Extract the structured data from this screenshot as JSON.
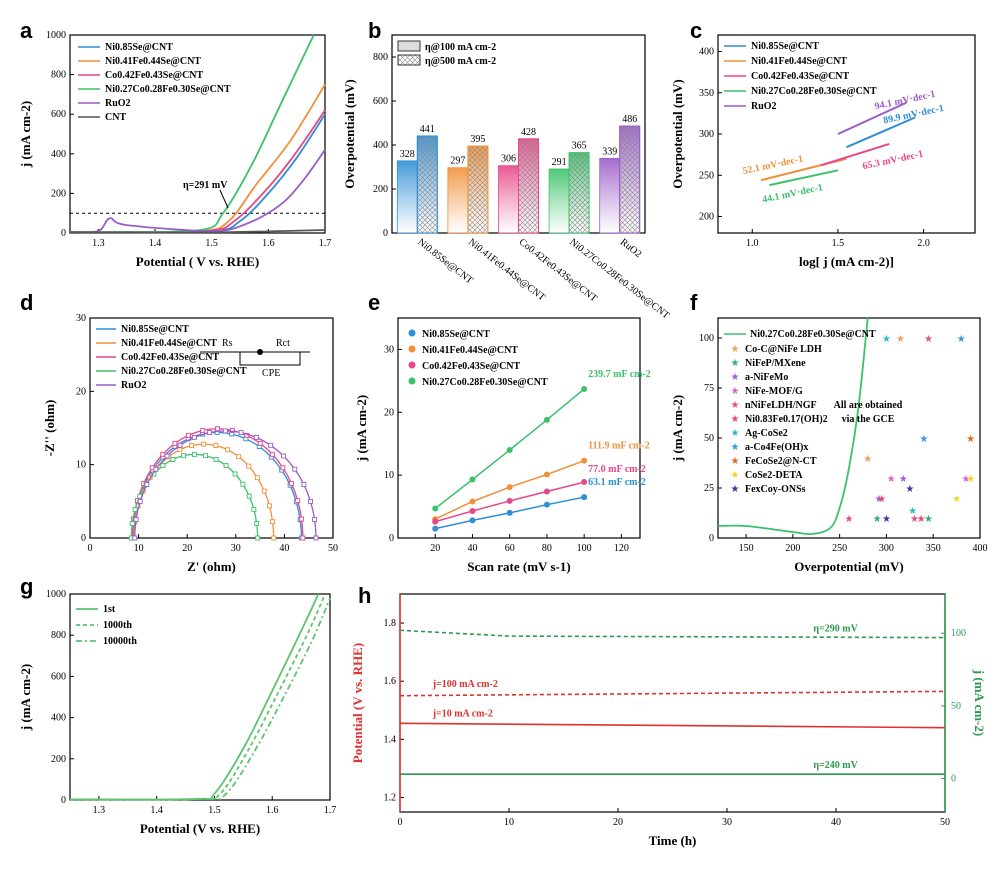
{
  "colors": {
    "blue": "#2e8ed6",
    "orange": "#f0913a",
    "pink": "#e8468a",
    "green": "#3cc26a",
    "purple": "#9a5cc8",
    "gray": "#555555",
    "red": "#e03030",
    "dgreen": "#2a9a4a"
  },
  "chart_data": [
    {
      "panel": "a",
      "type": "line",
      "xlabel": "Potential ( V vs. RHE)",
      "ylabel": "j (mA cm-2)",
      "xlim": [
        1.25,
        1.7
      ],
      "ylim": [
        0,
        1000
      ],
      "xticks": [
        "1.3",
        "1.4",
        "1.5",
        "1.6",
        "1.7"
      ],
      "yticks": [
        "0",
        "200",
        "400",
        "600",
        "800",
        "1000"
      ],
      "legend": [
        "Ni0.85Se@CNT",
        "Ni0.41Fe0.44Se@CNT",
        "Co0.42Fe0.43Se@CNT",
        "Ni0.27Co0.28Fe0.30Se@CNT",
        "RuO2",
        "CNT"
      ],
      "annotation": "η=291 mV",
      "dashed_y": 100,
      "series": [
        {
          "name": "Ni0.85Se@CNT",
          "color": "blue",
          "x": [
            1.25,
            1.3,
            1.5,
            1.55,
            1.6,
            1.65,
            1.7
          ],
          "y": [
            5,
            5,
            10,
            60,
            200,
            380,
            600
          ]
        },
        {
          "name": "Ni0.41Fe0.44Se@CNT",
          "color": "orange",
          "x": [
            1.25,
            1.3,
            1.48,
            1.53,
            1.58,
            1.64,
            1.7
          ],
          "y": [
            5,
            5,
            10,
            60,
            250,
            470,
            750
          ]
        },
        {
          "name": "Co0.42Fe0.43Se@CNT",
          "color": "pink",
          "x": [
            1.25,
            1.3,
            1.49,
            1.54,
            1.6,
            1.65,
            1.7
          ],
          "y": [
            5,
            5,
            10,
            60,
            230,
            410,
            620
          ]
        },
        {
          "name": "Ni0.27Co0.28Fe0.30Se@CNT",
          "color": "green",
          "x": [
            1.25,
            1.3,
            1.48,
            1.52,
            1.57,
            1.62,
            1.68
          ],
          "y": [
            5,
            5,
            15,
            100,
            340,
            640,
            1000
          ]
        },
        {
          "name": "RuO2",
          "color": "purple",
          "x": [
            1.25,
            1.3,
            1.32,
            1.35,
            1.5,
            1.56,
            1.62,
            1.66,
            1.7
          ],
          "y": [
            5,
            10,
            75,
            40,
            10,
            45,
            140,
            260,
            420
          ]
        },
        {
          "name": "CNT",
          "color": "gray",
          "x": [
            1.25,
            1.5,
            1.7
          ],
          "y": [
            3,
            3,
            15
          ]
        }
      ]
    },
    {
      "panel": "b",
      "type": "bar",
      "ylabel": "Overpotential (mV)",
      "ylim": [
        0,
        900
      ],
      "yticks": [
        "0",
        "200",
        "400",
        "600",
        "800"
      ],
      "legend": [
        "η@100 mA cm-2",
        "η@500 mA cm-2"
      ],
      "categories": [
        "Ni0.85Se@CNT",
        "Ni0.41Fe0.44Se@CNT",
        "Co0.42Fe0.43Se@CNT",
        "Ni0.27Co0.28Fe0.30Se@CNT",
        "RuO2"
      ],
      "colors": [
        "blue",
        "orange",
        "pink",
        "green",
        "purple"
      ],
      "series": [
        {
          "name": "η@100 mA cm-2",
          "values": [
            328,
            297,
            306,
            291,
            339
          ]
        },
        {
          "name": "η@500 mA cm-2",
          "values": [
            441,
            395,
            428,
            365,
            486
          ]
        }
      ]
    },
    {
      "panel": "c",
      "type": "line",
      "xlabel": "log[ j (mA cm-2)]",
      "ylabel": "Overpotential (mV)",
      "xlim": [
        0.8,
        2.3
      ],
      "ylim": [
        180,
        420
      ],
      "xticks": [
        "1.0",
        "1.5",
        "2.0"
      ],
      "yticks": [
        "200",
        "250",
        "300",
        "350",
        "400"
      ],
      "legend": [
        "Ni0.85Se@CNT",
        "Ni0.41Fe0.44Se@CNT",
        "Co0.42Fe0.43Se@CNT",
        "Ni0.27Co0.28Fe0.30Se@CNT",
        "RuO2"
      ],
      "series": [
        {
          "name": "Ni0.85Se@CNT",
          "color": "blue",
          "x": [
            1.55,
            1.95
          ],
          "y": [
            284,
            320
          ],
          "label": "89.9 mV·dec-1"
        },
        {
          "name": "Ni0.41Fe0.44Se@CNT",
          "color": "orange",
          "x": [
            1.05,
            1.55
          ],
          "y": [
            244,
            270
          ],
          "label": "52.1 mV·dec-1"
        },
        {
          "name": "Co0.42Fe0.43Se@CNT",
          "color": "pink",
          "x": [
            1.4,
            1.8
          ],
          "y": [
            262,
            288
          ],
          "label": "65.3 mV·dec-1"
        },
        {
          "name": "Ni0.27Co0.28Fe0.30Se@CNT",
          "color": "green",
          "x": [
            1.1,
            1.5
          ],
          "y": [
            238,
            256
          ],
          "label": "44.1 mV·dec-1"
        },
        {
          "name": "RuO2",
          "color": "purple",
          "x": [
            1.5,
            1.9
          ],
          "y": [
            300,
            338
          ],
          "label": "94.1 mV·dec-1"
        }
      ]
    },
    {
      "panel": "d",
      "type": "scatter",
      "xlabel": "Z' (ohm)",
      "ylabel": "-Z'' (ohm)",
      "xlim": [
        0,
        50
      ],
      "ylim": [
        0,
        30
      ],
      "xticks": [
        "0",
        "10",
        "20",
        "30",
        "40",
        "50"
      ],
      "yticks": [
        "0",
        "10",
        "20",
        "30"
      ],
      "legend": [
        "Ni0.85Se@CNT",
        "Ni0.41Fe0.44Se@CNT",
        "Co0.42Fe0.43Se@CNT",
        "Ni0.27Co0.28Fe0.30Se@CNT",
        "RuO2"
      ],
      "circuit": {
        "r1": "Rs",
        "r2": "Rct",
        "c": "CPE"
      },
      "series": [
        {
          "name": "Ni0.85Se@CNT",
          "color": "blue",
          "start": 8.8,
          "end": 43.5,
          "height": 14.4
        },
        {
          "name": "Ni0.41Fe0.44Se@CNT",
          "color": "orange",
          "start": 9.0,
          "end": 37.8,
          "height": 12.8
        },
        {
          "name": "Co0.42Fe0.43Se@CNT",
          "color": "pink",
          "start": 8.7,
          "end": 43.8,
          "height": 14.9
        },
        {
          "name": "Ni0.27Co0.28Fe0.30Se@CNT",
          "color": "green",
          "start": 8.5,
          "end": 34.5,
          "height": 11.4
        },
        {
          "name": "RuO2",
          "color": "purple",
          "start": 9.2,
          "end": 46.5,
          "height": 14.6
        }
      ]
    },
    {
      "panel": "e",
      "type": "scatter",
      "xlabel": "Scan rate (mV s-1)",
      "ylabel": "j (mA cm-2)",
      "xlim": [
        0,
        130
      ],
      "ylim": [
        0,
        35
      ],
      "xticks": [
        "20",
        "40",
        "60",
        "80",
        "100",
        "120"
      ],
      "yticks": [
        "0",
        "10",
        "20",
        "30"
      ],
      "legend": [
        "Ni0.85Se@CNT",
        "Ni0.41Fe0.44Se@CNT",
        "Co0.42Fe0.43Se@CNT",
        "Ni0.27Co0.28Fe0.30Se@CNT"
      ],
      "x": [
        20,
        40,
        60,
        80,
        100
      ],
      "series": [
        {
          "name": "Ni0.85Se@CNT",
          "color": "blue",
          "values": [
            1.5,
            2.8,
            4.0,
            5.3,
            6.5
          ],
          "label": "63.1 mF cm-2"
        },
        {
          "name": "Ni0.41Fe0.44Se@CNT",
          "color": "orange",
          "values": [
            3.0,
            5.8,
            8.1,
            10.1,
            12.3
          ],
          "label": "111.9 mF cm-2"
        },
        {
          "name": "Co0.42Fe0.43Se@CNT",
          "color": "pink",
          "values": [
            2.6,
            4.3,
            5.9,
            7.4,
            8.9
          ],
          "label": "77.0 mF cm-2"
        },
        {
          "name": "Ni0.27Co0.28Fe0.30Se@CNT",
          "color": "green",
          "values": [
            4.7,
            9.3,
            14.0,
            18.8,
            23.7
          ],
          "label": "239.7 mF cm-2"
        }
      ]
    },
    {
      "panel": "f",
      "type": "scatter",
      "xlabel": "Overpotential (mV)",
      "ylabel": "j (mA cm-2)",
      "xlim": [
        120,
        400
      ],
      "ylim": [
        0,
        110
      ],
      "xticks": [
        "150",
        "200",
        "250",
        "300",
        "350",
        "400"
      ],
      "yticks": [
        "0",
        "25",
        "50",
        "75",
        "100"
      ],
      "note": "All are obtained via the GCE",
      "curve": {
        "name": "Ni0.27Co0.28Fe0.30Se@CNT",
        "color": "green",
        "x": [
          120,
          150,
          200,
          220,
          240,
          250,
          260,
          270,
          280
        ],
        "y": [
          6,
          6,
          3,
          2,
          5,
          15,
          35,
          65,
          110
        ]
      },
      "legend": [
        "Co-C@NiFe LDH",
        "NiFeP/MXene",
        "a-NiFeMo",
        "NiFe-MOF/G",
        "nNiFeLDH/NGF",
        "Ni0.83Fe0.17(OH)2",
        "Ag-CoSe2",
        "a-Co4Fe(OH)x",
        "FeCoSe2@N-CT",
        "CoSe2-DETA",
        "FexCoy-ONSs"
      ],
      "legend_colors": [
        "#f0a060",
        "#2ab080",
        "#a060e0",
        "#e060d0",
        "#e85080",
        "#e84a78",
        "#30b8c8",
        "#3a9ad8",
        "#e06a20",
        "#f0d820",
        "#3a3aa0"
      ],
      "points": [
        {
          "x": 280,
          "y": 40,
          "c": 0
        },
        {
          "x": 315,
          "y": 100,
          "c": 0
        },
        {
          "x": 290,
          "y": 10,
          "c": 1
        },
        {
          "x": 345,
          "y": 10,
          "c": 1
        },
        {
          "x": 292,
          "y": 20,
          "c": 2
        },
        {
          "x": 318,
          "y": 30,
          "c": 2
        },
        {
          "x": 305,
          "y": 30,
          "c": 3
        },
        {
          "x": 385,
          "y": 30,
          "c": 3
        },
        {
          "x": 330,
          "y": 10,
          "c": 4
        },
        {
          "x": 345,
          "y": 100,
          "c": 4
        },
        {
          "x": 260,
          "y": 10,
          "c": 5
        },
        {
          "x": 295,
          "y": 20,
          "c": 5
        },
        {
          "x": 337,
          "y": 10,
          "c": 5
        },
        {
          "x": 328,
          "y": 14,
          "c": 6
        },
        {
          "x": 300,
          "y": 100,
          "c": 6
        },
        {
          "x": 340,
          "y": 50,
          "c": 7
        },
        {
          "x": 380,
          "y": 100,
          "c": 7
        },
        {
          "x": 390,
          "y": 50,
          "c": 8
        },
        {
          "x": 375,
          "y": 20,
          "c": 9
        },
        {
          "x": 390,
          "y": 30,
          "c": 9
        },
        {
          "x": 300,
          "y": 10,
          "c": 10
        },
        {
          "x": 325,
          "y": 25,
          "c": 10
        }
      ]
    },
    {
      "panel": "g",
      "type": "line",
      "xlabel": "Potential (V vs. RHE)",
      "ylabel": "j (mA cm-2)",
      "xlim": [
        1.25,
        1.7
      ],
      "ylim": [
        0,
        1000
      ],
      "xticks": [
        "1.3",
        "1.4",
        "1.5",
        "1.6",
        "1.7"
      ],
      "yticks": [
        "0",
        "200",
        "400",
        "600",
        "800",
        "1000"
      ],
      "legend": [
        "1st",
        "1000th",
        "10000th"
      ],
      "series": [
        {
          "name": "1st",
          "x": [
            1.25,
            1.47,
            1.5,
            1.55,
            1.6,
            1.65,
            1.68
          ],
          "y": [
            3,
            5,
            30,
            250,
            530,
            820,
            1000
          ]
        },
        {
          "name": "1000th",
          "x": [
            1.25,
            1.47,
            1.51,
            1.56,
            1.61,
            1.66,
            1.69
          ],
          "y": [
            3,
            5,
            30,
            250,
            520,
            800,
            990
          ]
        },
        {
          "name": "10000th",
          "x": [
            1.25,
            1.48,
            1.52,
            1.57,
            1.62,
            1.67,
            1.7
          ],
          "y": [
            3,
            5,
            30,
            240,
            500,
            780,
            980
          ]
        }
      ]
    },
    {
      "panel": "h",
      "type": "line",
      "xlabel": "Time (h)",
      "ylabel": "Potential (V vs. RHE)",
      "ylabel2": "j (mA cm-2)",
      "xlim": [
        0,
        50
      ],
      "ylim": [
        1.15,
        1.9
      ],
      "y2lim": [
        -23,
        127
      ],
      "xticks": [
        "0",
        "10",
        "20",
        "30",
        "40",
        "50"
      ],
      "yticks": [
        "1.2",
        "1.4",
        "1.6",
        "1.8"
      ],
      "y2ticks": [
        "0",
        "50",
        "100"
      ],
      "annotations": [
        "j=100 mA cm-2",
        "j=10 mA cm-2",
        "η=290 mV",
        "η=240 mV"
      ],
      "series": [
        {
          "name": "j=100 mA cm-2",
          "axis": "left",
          "color": "red",
          "dash": true,
          "x": [
            0,
            50
          ],
          "y": [
            1.55,
            1.565
          ]
        },
        {
          "name": "j=10 mA cm-2",
          "axis": "left",
          "color": "red",
          "dash": false,
          "x": [
            0,
            50
          ],
          "y": [
            1.455,
            1.44
          ]
        },
        {
          "name": "η=290 mV",
          "axis": "right",
          "color": "dgreen",
          "dash": true,
          "x": [
            0,
            10,
            50
          ],
          "y": [
            102,
            98,
            97
          ]
        },
        {
          "name": "η=240 mV",
          "axis": "right",
          "color": "dgreen",
          "dash": false,
          "x": [
            0,
            50
          ],
          "y": [
            3,
            3
          ]
        }
      ]
    }
  ]
}
